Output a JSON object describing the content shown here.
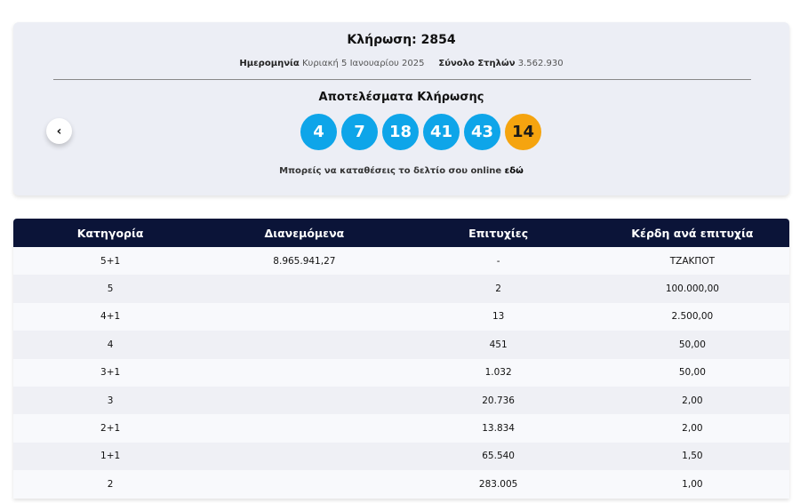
{
  "draw": {
    "title": "Κλήρωση: 2854",
    "date_label": "Ημερομηνία",
    "date": "Κυριακή 5 Ιανουαρίου 2025",
    "columns_label": "Σύνολο Στηλών",
    "columns": "3.562.930"
  },
  "results": {
    "title": "Αποτελέσματα Κλήρωσης",
    "numbers": [
      4,
      7,
      18,
      41,
      43
    ],
    "joker": 14
  },
  "note": {
    "text": "Μπορείς να καταθέσεις το δελτίο σου online",
    "link": "εδώ"
  },
  "table": {
    "headers": [
      "Κατηγορία",
      "Διανεμόμενα",
      "Επιτυχίες",
      "Κέρδη ανά επιτυχία"
    ],
    "rows": [
      [
        "5+1",
        "8.965.941,27",
        "-",
        "ΤΖΑΚΠΟΤ"
      ],
      [
        "5",
        null,
        "2",
        "100.000,00"
      ],
      [
        "4+1",
        null,
        "13",
        "2.500,00"
      ],
      [
        "4",
        null,
        "451",
        "50,00"
      ],
      [
        "3+1",
        null,
        "1.032",
        "50,00"
      ],
      [
        "3",
        null,
        "20.736",
        "2,00"
      ],
      [
        "2+1",
        null,
        "13.834",
        "2,00"
      ],
      [
        "1+1",
        null,
        "65.540",
        "1,50"
      ],
      [
        "2",
        null,
        "283.005",
        "1,00"
      ]
    ]
  }
}
